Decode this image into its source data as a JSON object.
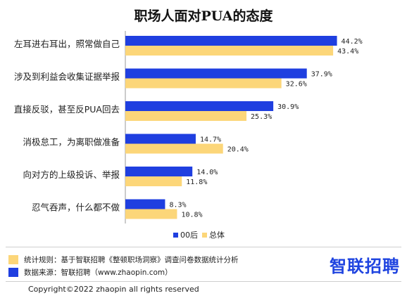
{
  "chart_data": {
    "type": "bar",
    "orientation": "horizontal",
    "title": "职场人面对PUA的态度",
    "categories": [
      "左耳进右耳出，照常做自己",
      "涉及到利益会收集证据举报",
      "直接反驳，甚至反PUA回去",
      "消极怠工，为离职做准备",
      "向对方的上级投诉、举报",
      "忍气吞声，什么都不做"
    ],
    "series": [
      {
        "name": "00后",
        "color": "#1f3fe0",
        "values": [
          44.2,
          37.9,
          30.9,
          14.7,
          14.0,
          8.3
        ]
      },
      {
        "name": "总体",
        "color": "#fcd679",
        "values": [
          43.4,
          32.6,
          25.3,
          20.4,
          11.8,
          10.8
        ]
      }
    ],
    "value_suffix": "%",
    "legend_position": "bottom",
    "grid": false
  },
  "notes": {
    "method_label": "统计规则：基于智联招聘《整顿职场洞察》调查问卷数据统计分析",
    "method_color": "#fcd679",
    "source_label": "数据来源：智联招聘（www.zhaopin.com）",
    "source_color": "#1f3fe0"
  },
  "brand": {
    "logo_text": "智联招聘",
    "color": "#1f44e0"
  },
  "copyright": "Copyright©2022 zhaopin all rights reserved"
}
